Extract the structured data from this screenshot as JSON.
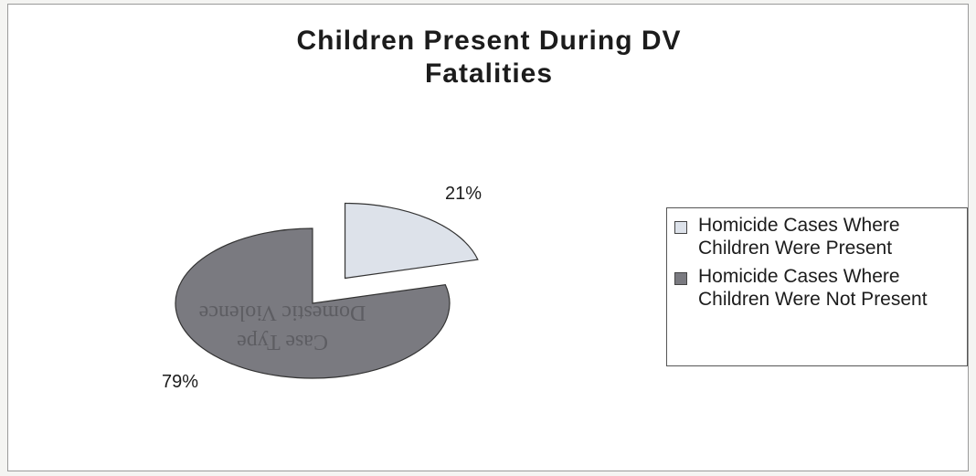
{
  "chart_data": {
    "type": "pie",
    "title": "Children Present During DV\nFatalities",
    "slices": [
      {
        "label": "Homicide Cases Where Children Were Present",
        "value": 21,
        "display": "21%",
        "color": "#dde2ea",
        "exploded": true
      },
      {
        "label": "Homicide Cases Where Children Were Not Present",
        "value": 79,
        "display": "79%",
        "color": "#7a7a80",
        "exploded": false
      }
    ],
    "legend_placement": "right",
    "background_text": [
      "Domestic Violence",
      "Case Type"
    ]
  }
}
